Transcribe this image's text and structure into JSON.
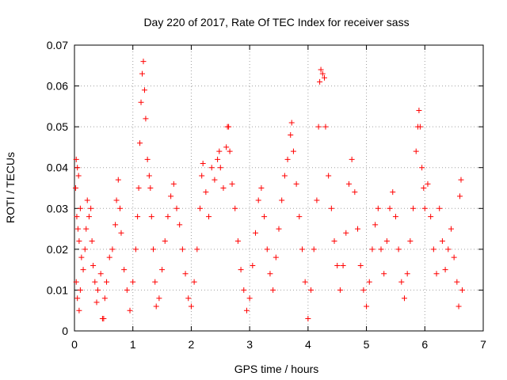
{
  "chart_data": {
    "type": "scatter",
    "title": "Day 220 of 2017, Rate Of TEC Index for receiver sass",
    "xlabel": "GPS time / hours",
    "ylabel": "ROTI / TECUs",
    "xlim": [
      0,
      7
    ],
    "ylim": [
      0,
      0.07
    ],
    "xticks": [
      0,
      1,
      2,
      3,
      4,
      5,
      6,
      7
    ],
    "yticks": [
      0,
      0.01,
      0.02,
      0.03,
      0.04,
      0.05,
      0.06,
      0.07
    ],
    "grid": true,
    "marker": "plus",
    "marker_color": "#ff0000",
    "series": [
      {
        "values": [
          [
            0.02,
            0.035
          ],
          [
            0.03,
            0.042
          ],
          [
            0.05,
            0.04
          ],
          [
            0.07,
            0.038
          ],
          [
            0.04,
            0.028
          ],
          [
            0.06,
            0.025
          ],
          [
            0.08,
            0.022
          ],
          [
            0.1,
            0.03
          ],
          [
            0.12,
            0.018
          ],
          [
            0.03,
            0.012
          ],
          [
            0.05,
            0.008
          ],
          [
            0.08,
            0.005
          ],
          [
            0.1,
            0.01
          ],
          [
            0.15,
            0.015
          ],
          [
            0.18,
            0.02
          ],
          [
            0.2,
            0.025
          ],
          [
            0.22,
            0.032
          ],
          [
            0.25,
            0.028
          ],
          [
            0.28,
            0.03
          ],
          [
            0.3,
            0.022
          ],
          [
            0.32,
            0.016
          ],
          [
            0.35,
            0.012
          ],
          [
            0.38,
            0.007
          ],
          [
            0.4,
            0.01
          ],
          [
            0.45,
            0.014
          ],
          [
            0.48,
            0.003
          ],
          [
            0.5,
            0.003
          ],
          [
            0.52,
            0.008
          ],
          [
            0.55,
            0.012
          ],
          [
            0.6,
            0.018
          ],
          [
            0.65,
            0.02
          ],
          [
            0.7,
            0.026
          ],
          [
            0.72,
            0.032
          ],
          [
            0.75,
            0.037
          ],
          [
            0.78,
            0.03
          ],
          [
            0.8,
            0.024
          ],
          [
            0.85,
            0.015
          ],
          [
            0.9,
            0.01
          ],
          [
            0.95,
            0.005
          ],
          [
            1.0,
            0.012
          ],
          [
            1.05,
            0.02
          ],
          [
            1.08,
            0.028
          ],
          [
            1.1,
            0.035
          ],
          [
            1.12,
            0.046
          ],
          [
            1.14,
            0.056
          ],
          [
            1.16,
            0.063
          ],
          [
            1.18,
            0.066
          ],
          [
            1.2,
            0.059
          ],
          [
            1.22,
            0.052
          ],
          [
            1.25,
            0.042
          ],
          [
            1.28,
            0.038
          ],
          [
            1.3,
            0.035
          ],
          [
            1.32,
            0.028
          ],
          [
            1.35,
            0.02
          ],
          [
            1.38,
            0.012
          ],
          [
            1.4,
            0.006
          ],
          [
            1.45,
            0.008
          ],
          [
            1.5,
            0.015
          ],
          [
            1.55,
            0.022
          ],
          [
            1.6,
            0.028
          ],
          [
            1.65,
            0.033
          ],
          [
            1.7,
            0.036
          ],
          [
            1.75,
            0.03
          ],
          [
            1.8,
            0.026
          ],
          [
            1.85,
            0.02
          ],
          [
            1.9,
            0.014
          ],
          [
            1.95,
            0.008
          ],
          [
            2.0,
            0.006
          ],
          [
            2.05,
            0.012
          ],
          [
            2.1,
            0.02
          ],
          [
            2.15,
            0.03
          ],
          [
            2.18,
            0.038
          ],
          [
            2.2,
            0.041
          ],
          [
            2.25,
            0.034
          ],
          [
            2.3,
            0.028
          ],
          [
            2.35,
            0.04
          ],
          [
            2.4,
            0.037
          ],
          [
            2.45,
            0.042
          ],
          [
            2.48,
            0.044
          ],
          [
            2.5,
            0.04
          ],
          [
            2.55,
            0.035
          ],
          [
            2.6,
            0.045
          ],
          [
            2.62,
            0.05
          ],
          [
            2.64,
            0.05
          ],
          [
            2.66,
            0.044
          ],
          [
            2.7,
            0.036
          ],
          [
            2.75,
            0.03
          ],
          [
            2.8,
            0.022
          ],
          [
            2.85,
            0.015
          ],
          [
            2.9,
            0.01
          ],
          [
            2.95,
            0.005
          ],
          [
            3.0,
            0.008
          ],
          [
            3.05,
            0.016
          ],
          [
            3.1,
            0.024
          ],
          [
            3.15,
            0.032
          ],
          [
            3.2,
            0.035
          ],
          [
            3.25,
            0.028
          ],
          [
            3.3,
            0.02
          ],
          [
            3.35,
            0.014
          ],
          [
            3.4,
            0.01
          ],
          [
            3.45,
            0.018
          ],
          [
            3.5,
            0.025
          ],
          [
            3.55,
            0.032
          ],
          [
            3.6,
            0.038
          ],
          [
            3.65,
            0.042
          ],
          [
            3.7,
            0.048
          ],
          [
            3.72,
            0.051
          ],
          [
            3.75,
            0.044
          ],
          [
            3.8,
            0.036
          ],
          [
            3.85,
            0.028
          ],
          [
            3.9,
            0.02
          ],
          [
            3.95,
            0.012
          ],
          [
            4.0,
            0.003
          ],
          [
            4.05,
            0.01
          ],
          [
            4.1,
            0.02
          ],
          [
            4.15,
            0.032
          ],
          [
            4.18,
            0.05
          ],
          [
            4.2,
            0.061
          ],
          [
            4.22,
            0.064
          ],
          [
            4.25,
            0.063
          ],
          [
            4.28,
            0.062
          ],
          [
            4.3,
            0.05
          ],
          [
            4.35,
            0.038
          ],
          [
            4.4,
            0.03
          ],
          [
            4.45,
            0.022
          ],
          [
            4.5,
            0.016
          ],
          [
            4.55,
            0.01
          ],
          [
            4.6,
            0.016
          ],
          [
            4.65,
            0.024
          ],
          [
            4.7,
            0.036
          ],
          [
            4.75,
            0.042
          ],
          [
            4.8,
            0.034
          ],
          [
            4.85,
            0.025
          ],
          [
            4.9,
            0.016
          ],
          [
            4.95,
            0.01
          ],
          [
            5.0,
            0.006
          ],
          [
            5.05,
            0.012
          ],
          [
            5.1,
            0.02
          ],
          [
            5.15,
            0.026
          ],
          [
            5.2,
            0.03
          ],
          [
            5.25,
            0.02
          ],
          [
            5.3,
            0.014
          ],
          [
            5.35,
            0.022
          ],
          [
            5.4,
            0.03
          ],
          [
            5.45,
            0.034
          ],
          [
            5.5,
            0.028
          ],
          [
            5.55,
            0.02
          ],
          [
            5.6,
            0.012
          ],
          [
            5.65,
            0.008
          ],
          [
            5.7,
            0.014
          ],
          [
            5.75,
            0.022
          ],
          [
            5.8,
            0.03
          ],
          [
            5.85,
            0.044
          ],
          [
            5.88,
            0.05
          ],
          [
            5.9,
            0.054
          ],
          [
            5.92,
            0.05
          ],
          [
            5.95,
            0.04
          ],
          [
            5.98,
            0.035
          ],
          [
            6.0,
            0.03
          ],
          [
            6.05,
            0.036
          ],
          [
            6.1,
            0.028
          ],
          [
            6.15,
            0.02
          ],
          [
            6.2,
            0.014
          ],
          [
            6.25,
            0.03
          ],
          [
            6.3,
            0.022
          ],
          [
            6.35,
            0.015
          ],
          [
            6.4,
            0.02
          ],
          [
            6.45,
            0.025
          ],
          [
            6.5,
            0.018
          ],
          [
            6.55,
            0.012
          ],
          [
            6.58,
            0.006
          ],
          [
            6.6,
            0.033
          ],
          [
            6.62,
            0.037
          ],
          [
            6.64,
            0.01
          ]
        ]
      }
    ]
  }
}
